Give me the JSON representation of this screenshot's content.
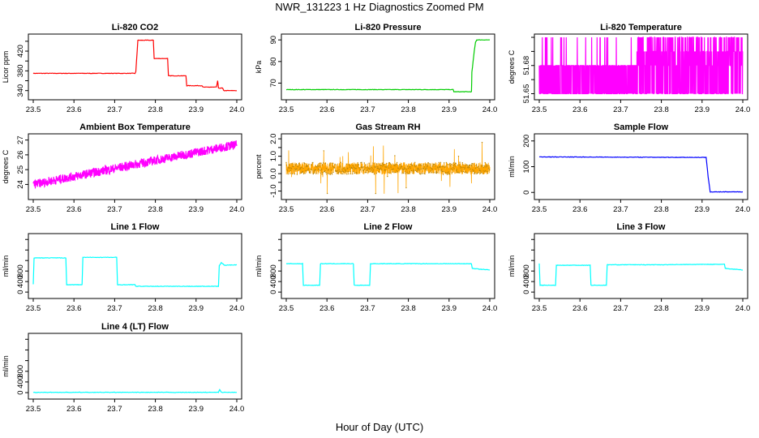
{
  "figure": {
    "title": "NWR_131223  1 Hz Diagnostics Zoomed PM",
    "xlabel": "Hour of Day (UTC)"
  },
  "chart_data": [
    {
      "type": "line",
      "title": "Li-820 CO2",
      "ylabel": "Licor ppm",
      "color": "#ff0000",
      "xlim": [
        23.5,
        24.0
      ],
      "ylim": [
        328,
        448
      ],
      "xticks": [
        "23.5",
        "23.6",
        "23.7",
        "23.8",
        "23.9",
        "24.0"
      ],
      "yticks": [
        340,
        360,
        380,
        400,
        420,
        440
      ],
      "ytick_labels": [
        "340",
        "",
        "380",
        "",
        "420",
        ""
      ],
      "x": [
        23.5,
        23.75,
        23.752,
        23.757,
        23.795,
        23.797,
        23.83,
        23.832,
        23.875,
        23.877,
        23.915,
        23.917,
        23.95,
        23.953,
        23.955,
        23.965,
        23.968,
        24.0
      ],
      "y": [
        375,
        375,
        378,
        442,
        442,
        405,
        405,
        370,
        370,
        350,
        350,
        347,
        347,
        360,
        345,
        345,
        340,
        340
      ]
    },
    {
      "type": "line",
      "title": "Li-820 Pressure",
      "ylabel": "kPa",
      "color": "#00cc00",
      "xlim": [
        23.5,
        24.0
      ],
      "ylim": [
        63.8,
        91.2
      ],
      "xticks": [
        "23.5",
        "23.6",
        "23.7",
        "23.8",
        "23.9",
        "24.0"
      ],
      "yticks": [
        70,
        80,
        90
      ],
      "ytick_labels": [
        "70",
        "80",
        "90"
      ],
      "x": [
        23.5,
        23.91,
        23.912,
        23.955,
        23.956,
        23.962,
        23.965,
        23.968,
        23.97,
        24.0
      ],
      "y": [
        67,
        67,
        66,
        66,
        75,
        85,
        89,
        90,
        90,
        90
      ]
    },
    {
      "type": "line",
      "title": "Li-820 Temperature",
      "ylabel": "degrees C",
      "color": "#ff00ff",
      "xlim": [
        23.5,
        24.0
      ],
      "ylim": [
        51.648,
        51.69
      ],
      "xticks": [
        "23.5",
        "23.6",
        "23.7",
        "23.8",
        "23.9",
        "24.0"
      ],
      "yticks": [
        51.65,
        51.66,
        51.67,
        51.68,
        51.69
      ],
      "ytick_labels": [
        "51.65",
        "",
        "51.68",
        "",
        ""
      ],
      "levels": [
        51.65,
        51.67,
        51.68,
        51.69
      ],
      "note_x_dense_levels": [
        [
          23.5,
          51.65
        ],
        [
          23.5,
          51.67
        ]
      ]
    },
    {
      "type": "line",
      "title": "Ambient Box Temperature",
      "ylabel": "degrees C",
      "color": "#ff00ff",
      "xlim": [
        23.5,
        24.0
      ],
      "ylim": [
        23.2,
        27.2
      ],
      "xticks": [
        "23.5",
        "23.6",
        "23.7",
        "23.8",
        "23.9",
        "24.0"
      ],
      "yticks": [
        24,
        25,
        26,
        27
      ],
      "ytick_labels": [
        "24",
        "25",
        "26",
        "27"
      ],
      "trend_start": [
        23.5,
        24.0
      ],
      "trend_end": [
        24.0,
        26.7
      ],
      "noise": 0.6
    },
    {
      "type": "line",
      "title": "Gas Stream RH",
      "ylabel": "percent",
      "color": "#ffa500",
      "xlim": [
        23.5,
        24.0
      ],
      "ylim": [
        -1.3,
        2.1
      ],
      "xticks": [
        "23.5",
        "23.6",
        "23.7",
        "23.8",
        "23.9",
        "24.0"
      ],
      "yticks": [
        -1.0,
        -0.5,
        0.0,
        0.5,
        1.0,
        1.5,
        2.0
      ],
      "ytick_labels": [
        "-1.0",
        "",
        "0.0",
        "",
        "1.0",
        "",
        "2.0"
      ],
      "mean": 0.3,
      "noise": 0.35
    },
    {
      "type": "line",
      "title": "Sample Flow",
      "ylabel": "ml/min",
      "color": "#0000ff",
      "xlim": [
        23.5,
        24.0
      ],
      "ylim": [
        -15,
        215
      ],
      "xticks": [
        "23.5",
        "23.6",
        "23.7",
        "23.8",
        "23.9",
        "24.0"
      ],
      "yticks": [
        0,
        100,
        200
      ],
      "ytick_labels": [
        "0",
        "100",
        "200"
      ],
      "x": [
        23.5,
        23.91,
        23.915,
        23.92,
        24.0
      ],
      "y": [
        138,
        136,
        60,
        2,
        2
      ]
    },
    {
      "type": "line",
      "title": "Line 1 Flow",
      "ylabel": "ml/min",
      "color": "#00ffff",
      "xlim": [
        23.5,
        24.0
      ],
      "ylim": [
        -60,
        1050
      ],
      "xticks": [
        "23.5",
        "23.6",
        "23.7",
        "23.8",
        "23.9",
        "24.0"
      ],
      "yticks": [
        0,
        200,
        400,
        600,
        800,
        1000
      ],
      "ytick_labels": [
        "0",
        "400",
        "800",
        "",
        "",
        ""
      ],
      "x": [
        23.5,
        23.502,
        23.58,
        23.582,
        23.62,
        23.622,
        23.705,
        23.707,
        23.75,
        23.752,
        23.955,
        23.957,
        23.962,
        23.97,
        24.0
      ],
      "y": [
        150,
        650,
        650,
        140,
        140,
        660,
        660,
        140,
        140,
        110,
        110,
        500,
        560,
        510,
        520
      ]
    },
    {
      "type": "line",
      "title": "Line 2 Flow",
      "ylabel": "ml/min",
      "color": "#00ffff",
      "xlim": [
        23.5,
        24.0
      ],
      "ylim": [
        -60,
        1050
      ],
      "xticks": [
        "23.5",
        "23.6",
        "23.7",
        "23.8",
        "23.9",
        "24.0"
      ],
      "yticks": [
        0,
        200,
        400,
        600,
        800,
        1000
      ],
      "ytick_labels": [
        "0",
        "400",
        "800",
        "",
        "",
        ""
      ],
      "x": [
        23.5,
        23.54,
        23.542,
        23.582,
        23.584,
        23.665,
        23.667,
        23.705,
        23.707,
        23.8,
        23.955,
        23.957,
        23.97,
        24.0
      ],
      "y": [
        540,
        540,
        130,
        130,
        540,
        540,
        130,
        130,
        540,
        540,
        540,
        450,
        440,
        420
      ]
    },
    {
      "type": "line",
      "title": "Line 3 Flow",
      "ylabel": "ml/min",
      "color": "#00ffff",
      "xlim": [
        23.5,
        24.0
      ],
      "ylim": [
        -60,
        1050
      ],
      "xticks": [
        "23.5",
        "23.6",
        "23.7",
        "23.8",
        "23.9",
        "24.0"
      ],
      "yticks": [
        0,
        200,
        400,
        600,
        800,
        1000
      ],
      "ytick_labels": [
        "0",
        "400",
        "800",
        "",
        "",
        ""
      ],
      "x": [
        23.5,
        23.502,
        23.54,
        23.542,
        23.625,
        23.627,
        23.665,
        23.667,
        23.8,
        23.955,
        23.957,
        23.97,
        24.0
      ],
      "y": [
        540,
        130,
        130,
        510,
        510,
        130,
        130,
        520,
        520,
        530,
        450,
        440,
        420
      ]
    },
    {
      "type": "line",
      "title": "Line 4 (LT) Flow",
      "ylabel": "ml/min",
      "color": "#00ffff",
      "xlim": [
        23.5,
        24.0
      ],
      "ylim": [
        -60,
        1050
      ],
      "xticks": [
        "23.5",
        "23.6",
        "23.7",
        "23.8",
        "23.9",
        "24.0"
      ],
      "yticks": [
        0,
        200,
        400,
        600,
        800,
        1000
      ],
      "ytick_labels": [
        "0",
        "400",
        "800",
        "",
        "",
        ""
      ],
      "x": [
        23.5,
        23.955,
        23.958,
        23.962,
        24.0
      ],
      "y": [
        5,
        5,
        60,
        5,
        5
      ]
    }
  ]
}
